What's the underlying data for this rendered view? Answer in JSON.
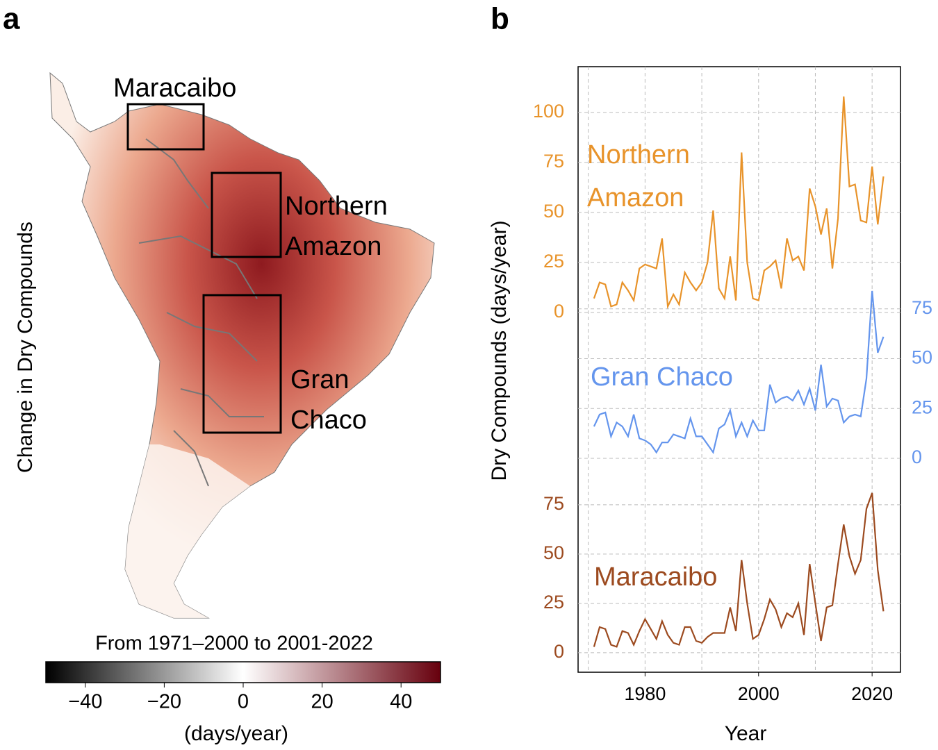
{
  "panel_labels": [
    "a",
    "b"
  ],
  "map": {
    "ylabel": "Change in Dry Compounds",
    "regions": [
      "Maracaibo",
      "Northern Amazon",
      "Gran Chaco"
    ],
    "colorbar": {
      "title": "From 1971–2000 to 2001-2022",
      "label": "(days/year)",
      "lim": [
        -50,
        50
      ],
      "ticks": [
        {
          "value": -40,
          "label": "−40"
        },
        {
          "value": -20,
          "label": "−20"
        },
        0,
        20,
        40
      ],
      "colors": [
        "#000000",
        "#ffffff",
        "#67000d"
      ]
    }
  },
  "chart_data": {
    "type": "line",
    "xlabel": "Year",
    "ylabel": "Dry Compounds (days/year)",
    "xlim": [
      1968.2,
      2025.0
    ],
    "xticks": [
      1980,
      2000,
      2020
    ],
    "xgrid": [
      1970,
      1980,
      1990,
      2000,
      2010,
      2020
    ],
    "grid": true,
    "x": [
      1971,
      1972,
      1973,
      1974,
      1975,
      1976,
      1977,
      1978,
      1979,
      1980,
      1981,
      1982,
      1983,
      1984,
      1985,
      1986,
      1987,
      1988,
      1989,
      1990,
      1991,
      1992,
      1993,
      1994,
      1995,
      1996,
      1997,
      1998,
      1999,
      2000,
      2001,
      2002,
      2003,
      2004,
      2005,
      2006,
      2007,
      2008,
      2009,
      2010,
      2011,
      2012,
      2013,
      2014,
      2015,
      2016,
      2017,
      2018,
      2019,
      2020,
      2021,
      2022
    ],
    "series": [
      {
        "name": "Northern Amazon",
        "color": "#e8932a",
        "axis": "left",
        "ylim": [
          -179.9,
          122.9
        ],
        "yticks": [
          0,
          25,
          50,
          75,
          100
        ],
        "values": [
          7,
          15,
          14,
          3,
          4,
          15,
          11,
          6,
          22,
          24,
          23,
          22,
          37,
          3,
          9,
          4,
          20,
          15,
          11,
          15,
          25,
          51,
          12,
          7,
          28,
          6,
          80,
          25,
          7,
          6,
          21,
          23,
          26,
          12,
          37,
          26,
          28,
          21,
          62,
          53,
          39,
          52,
          22,
          47,
          108,
          63,
          64,
          46,
          45,
          73,
          44,
          68
        ]
      },
      {
        "name": "Gran Chaco",
        "color": "#6495ed",
        "axis": "right",
        "ylim": [
          -107.3,
          196.5
        ],
        "yticks": [
          0,
          25,
          50,
          75
        ],
        "values": [
          16,
          22,
          23,
          11,
          18,
          16,
          11,
          22,
          10,
          9,
          7,
          3,
          8,
          8,
          12,
          11,
          10,
          20,
          11,
          11,
          7,
          3,
          15,
          17,
          24,
          11,
          18,
          11,
          19,
          14,
          14,
          37,
          28,
          30,
          31,
          29,
          34,
          27,
          35,
          24,
          47,
          26,
          30,
          29,
          18,
          21,
          22,
          21,
          40,
          84,
          53,
          61
        ]
      },
      {
        "name": "Maracaibo",
        "color": "#9c4a1f",
        "axis": "left",
        "ylim": [
          -9.9,
          297.2
        ],
        "yticks": [
          0,
          25,
          50,
          75
        ],
        "values": [
          3,
          13,
          12,
          4,
          3,
          11,
          10,
          4,
          11,
          17,
          12,
          7,
          16,
          9,
          5,
          4,
          13,
          13,
          6,
          5,
          8,
          10,
          10,
          10,
          23,
          11,
          47,
          25,
          7,
          9,
          17,
          27,
          22,
          13,
          20,
          18,
          25,
          9,
          45,
          25,
          6,
          23,
          24,
          45,
          65,
          49,
          40,
          47,
          73,
          81,
          42,
          21
        ]
      }
    ]
  }
}
